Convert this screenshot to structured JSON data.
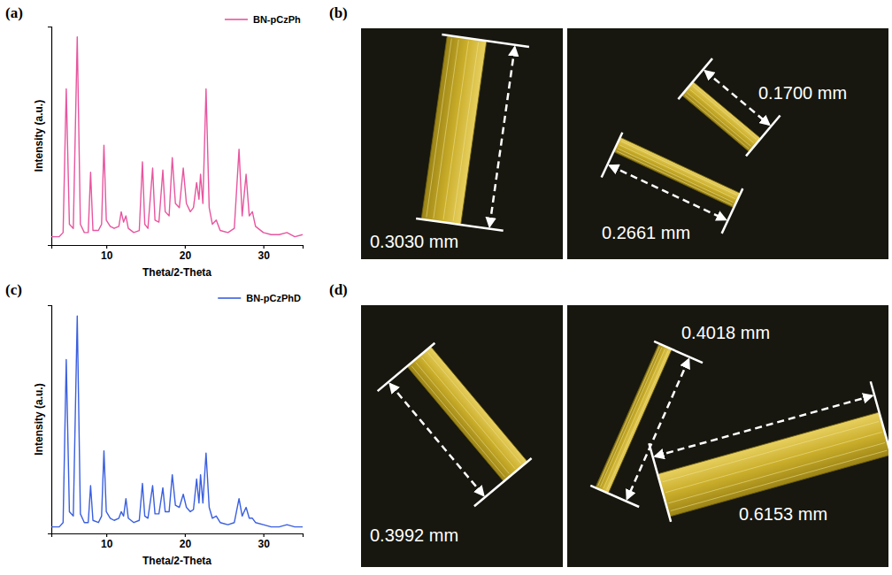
{
  "chart_data": [
    {
      "type": "line",
      "panel_label": "(a)",
      "x_label": "Theta/2-Theta",
      "y_label": "Intensity (a.u.)",
      "xlim": [
        3,
        35
      ],
      "xticks": [
        10,
        20,
        30
      ],
      "ylim": [
        0,
        105
      ],
      "yticks": [],
      "tick_labels": "x",
      "legend": "upper right",
      "x": [
        3.0,
        4.0,
        4.5,
        4.9,
        5.3,
        5.8,
        6.3,
        6.7,
        7.2,
        7.7,
        8.0,
        8.3,
        9.0,
        9.4,
        9.7,
        10.0,
        10.5,
        11.0,
        11.6,
        11.9,
        12.2,
        12.5,
        12.8,
        13.5,
        14.2,
        14.6,
        14.9,
        15.3,
        15.9,
        16.2,
        16.7,
        17.2,
        17.5,
        18.0,
        18.4,
        18.8,
        19.3,
        19.8,
        20.2,
        20.7,
        21.1,
        21.5,
        21.8,
        22.0,
        22.3,
        22.7,
        23.1,
        23.5,
        24.0,
        24.5,
        25.5,
        26.3,
        26.9,
        27.3,
        27.8,
        28.2,
        28.6,
        29.0,
        30.0,
        31.0,
        32.0,
        33.0,
        34.0,
        35.0
      ],
      "series": [
        {
          "name": "BN-pCzPh",
          "color": "#e8559f",
          "values": [
            4,
            4,
            6,
            75,
            10,
            8,
            100,
            10,
            6,
            6,
            35,
            7,
            7,
            10,
            48,
            12,
            9,
            8,
            9,
            16,
            11,
            14,
            8,
            6,
            7,
            40,
            10,
            8,
            37,
            12,
            11,
            36,
            16,
            14,
            42,
            20,
            18,
            37,
            20,
            16,
            18,
            30,
            22,
            34,
            20,
            75,
            18,
            10,
            12,
            7,
            6,
            8,
            46,
            14,
            34,
            14,
            16,
            9,
            6,
            5,
            5,
            6,
            4,
            5
          ]
        }
      ]
    },
    {
      "type": "line",
      "panel_label": "(c)",
      "x_label": "Theta/2-Theta",
      "y_label": "Intensity (a.u.)",
      "xlim": [
        3,
        35
      ],
      "xticks": [
        10,
        20,
        30
      ],
      "ylim": [
        0,
        105
      ],
      "yticks": [],
      "tick_labels": "x",
      "legend": "upper right",
      "x": [
        3.0,
        4.0,
        4.5,
        4.9,
        5.3,
        5.8,
        6.3,
        6.7,
        7.2,
        7.7,
        8.0,
        8.3,
        9.0,
        9.4,
        9.7,
        10.0,
        10.5,
        11.0,
        11.6,
        11.9,
        12.2,
        12.5,
        12.8,
        13.5,
        14.2,
        14.6,
        14.9,
        15.3,
        15.9,
        16.2,
        16.7,
        17.2,
        17.5,
        18.0,
        18.4,
        18.8,
        19.3,
        19.8,
        20.2,
        20.7,
        21.1,
        21.5,
        21.8,
        22.0,
        22.3,
        22.7,
        23.1,
        23.5,
        24.0,
        24.5,
        25.5,
        26.3,
        26.9,
        27.3,
        27.8,
        28.2,
        28.6,
        29.0,
        30.0,
        31.0,
        32.0,
        33.0,
        34.0,
        35.0
      ],
      "series": [
        {
          "name": "BN-pCzPhD",
          "color": "#3a5fe0",
          "values": [
            3,
            3,
            5,
            80,
            10,
            8,
            100,
            9,
            5,
            5,
            22,
            6,
            5,
            8,
            38,
            10,
            7,
            6,
            7,
            10,
            8,
            16,
            7,
            5,
            6,
            23,
            8,
            7,
            22,
            9,
            9,
            21,
            10,
            10,
            27,
            13,
            12,
            18,
            12,
            10,
            11,
            25,
            14,
            27,
            14,
            37,
            12,
            7,
            8,
            5,
            4,
            5,
            16,
            8,
            12,
            7,
            7,
            5,
            4,
            3,
            3,
            4,
            3,
            3
          ]
        }
      ]
    }
  ],
  "photos": [
    {
      "panel_label": "(b)",
      "images": [
        {
          "measurements": [
            "0.3030 mm"
          ]
        },
        {
          "measurements": [
            "0.1700 mm",
            "0.2661 mm"
          ]
        }
      ]
    },
    {
      "panel_label": "(d)",
      "images": [
        {
          "measurements": [
            "0.3992 mm"
          ]
        },
        {
          "measurements": [
            "0.4018 mm",
            "0.6153 mm"
          ]
        }
      ]
    }
  ]
}
